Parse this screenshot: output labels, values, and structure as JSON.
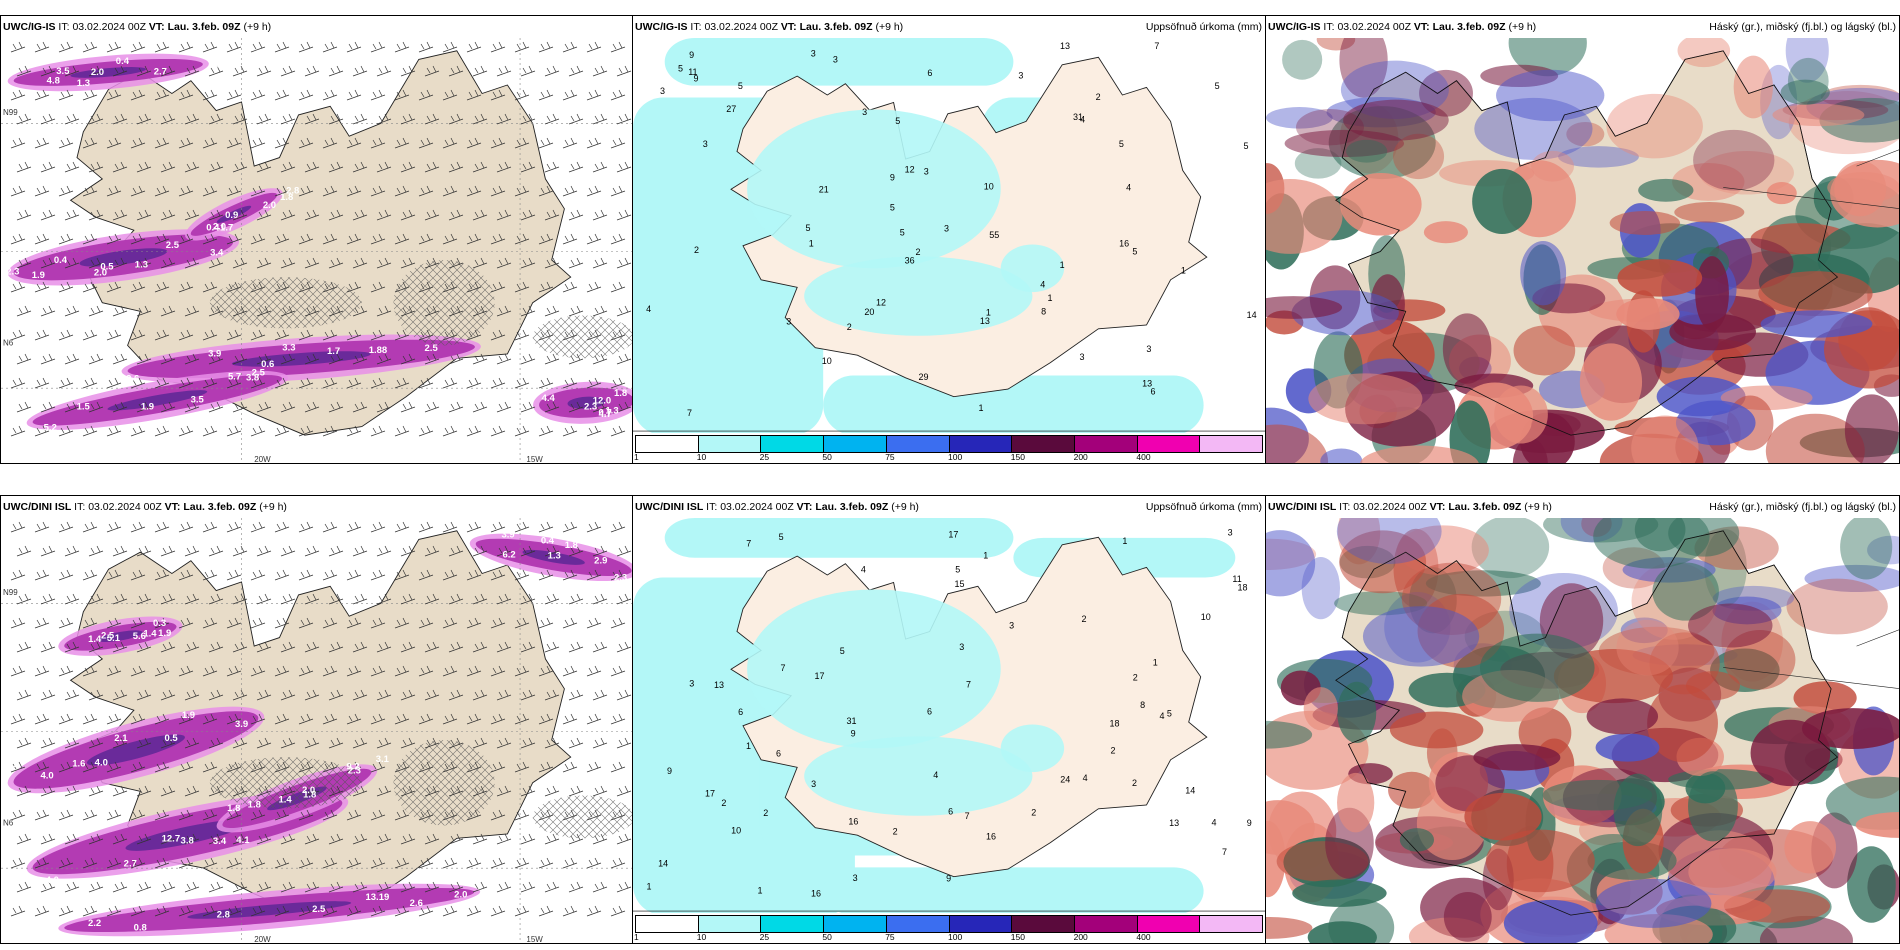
{
  "colors": {
    "land": "#e8dcc8",
    "land_light": "#fbeee2",
    "precip_magenta": "#b33bb3",
    "precip_light": "#e88fe8",
    "precip_cyan": "#b3f7f7",
    "cloud_high": "#7a1a3e",
    "cloud_mid": "#2f6e5a",
    "cloud_low": "#4d55c8"
  },
  "legend": {
    "ticks": [
      "1",
      "10",
      "25",
      "50",
      "75",
      "100",
      "150",
      "200",
      "400"
    ],
    "colors": [
      "#ffffff",
      "#b3f7f7",
      "#00d9e6",
      "#00b3f0",
      "#3b6ef0",
      "#2626b8",
      "#5a0a3c",
      "#a3007a",
      "#f000b0",
      "#f3b8f5"
    ]
  },
  "rows": [
    {
      "model": "UWC/IG-IS",
      "it_label": "IT:",
      "it_value": "03.02.2024 00Z",
      "vt_label": "VT:",
      "vt_value": "Lau. 3.feb. 09Z",
      "lead": "(+9 h)",
      "precip_title": "Uppsöfnuð úrkoma (mm)",
      "cloud_title": "Háský (gr.), miðský (fj.bl.) og lágský (bl.)",
      "lat_labels": [
        "N99",
        "N6"
      ],
      "lon_labels": [
        "20W",
        "15W"
      ],
      "wind_values": [
        "2.3",
        "2.5",
        "5.7",
        "4.8",
        "12.0",
        "1.8",
        "0.4",
        "1.7",
        "0.6",
        "1.3",
        "0.7",
        "0.4",
        "0.5",
        "2.5",
        "1.5",
        "0.4",
        "1.8",
        "2.0",
        "2.5",
        "2.6",
        "1.9",
        "2.7",
        "4.4",
        "0.9",
        "3.4",
        "3.9",
        "3.5",
        "1.5",
        "2.3",
        "2.0",
        "1.9",
        "3.3",
        "3.8",
        "3.5",
        "4.7",
        "2.8",
        "2.0",
        "1.88",
        "5.2",
        "2.0",
        "1.3",
        "1.7",
        "1.3"
      ],
      "precip_values": [
        "21",
        "27",
        "31",
        "36",
        "55",
        "20",
        "16",
        "14",
        "29",
        "1",
        "2",
        "3",
        "6",
        "5",
        "1",
        "3",
        "1",
        "1",
        "4",
        "3",
        "3",
        "5",
        "4",
        "3",
        "5",
        "3",
        "4",
        "3",
        "3",
        "5",
        "10",
        "11",
        "6",
        "1",
        "5",
        "7",
        "12",
        "2",
        "3",
        "9",
        "5",
        "3",
        "5",
        "4",
        "5",
        "2",
        "3",
        "1",
        "5",
        "8",
        "7",
        "2",
        "5",
        "13",
        "12",
        "13",
        "9",
        "9",
        "13",
        "10"
      ]
    },
    {
      "model": "UWC/DINI ISL",
      "it_label": "IT:",
      "it_value": "03.02.2024 00Z",
      "vt_label": "VT:",
      "vt_value": "Lau. 3.feb. 09Z",
      "lead": "(+9 h)",
      "precip_title": "Uppsöfnuð úrkoma (mm)",
      "cloud_title": "Háský (gr.), miðský (fj.bl.) og lágský (bl.)",
      "lat_labels": [
        "N99",
        "N6"
      ],
      "lon_labels": [
        "20W",
        "15W"
      ],
      "wind_values": [
        "9.2",
        "12.7",
        "13.19",
        "6.2",
        "5.1",
        "9.2",
        "1.6",
        "3.4",
        "2.0",
        "0.4",
        "0.3",
        "1.8",
        "2.1",
        "1.8",
        "0.8",
        "1.8",
        "1.9",
        "1.4",
        "1.9",
        "4.0",
        "2.8",
        "2.9",
        "1.4",
        "2.0",
        "3.9",
        "2.7",
        "2.5",
        "2.3",
        "2.5",
        "2.3",
        "4.0",
        "3.8",
        "2.6",
        "3.9",
        "5.6",
        "3.1",
        "4.0",
        "4.1",
        "2.2",
        "1.3",
        "1.4",
        "1.8",
        "0.5"
      ],
      "precip_values": [
        "16",
        "24",
        "31",
        "16",
        "14",
        "2",
        "1",
        "18",
        "18",
        "17",
        "17",
        "2",
        "6",
        "2",
        "7",
        "3",
        "4",
        "1",
        "1",
        "1",
        "2",
        "5",
        "3",
        "7",
        "7",
        "2",
        "3",
        "9",
        "6",
        "6",
        "4",
        "9",
        "2",
        "7",
        "3",
        "2",
        "3",
        "1",
        "4",
        "4",
        "5",
        "1",
        "2",
        "3",
        "4",
        "16",
        "8",
        "5",
        "6",
        "5",
        "13",
        "15",
        "17",
        "14",
        "11",
        "9",
        "10",
        "13",
        "9",
        "10",
        "7"
      ]
    }
  ]
}
